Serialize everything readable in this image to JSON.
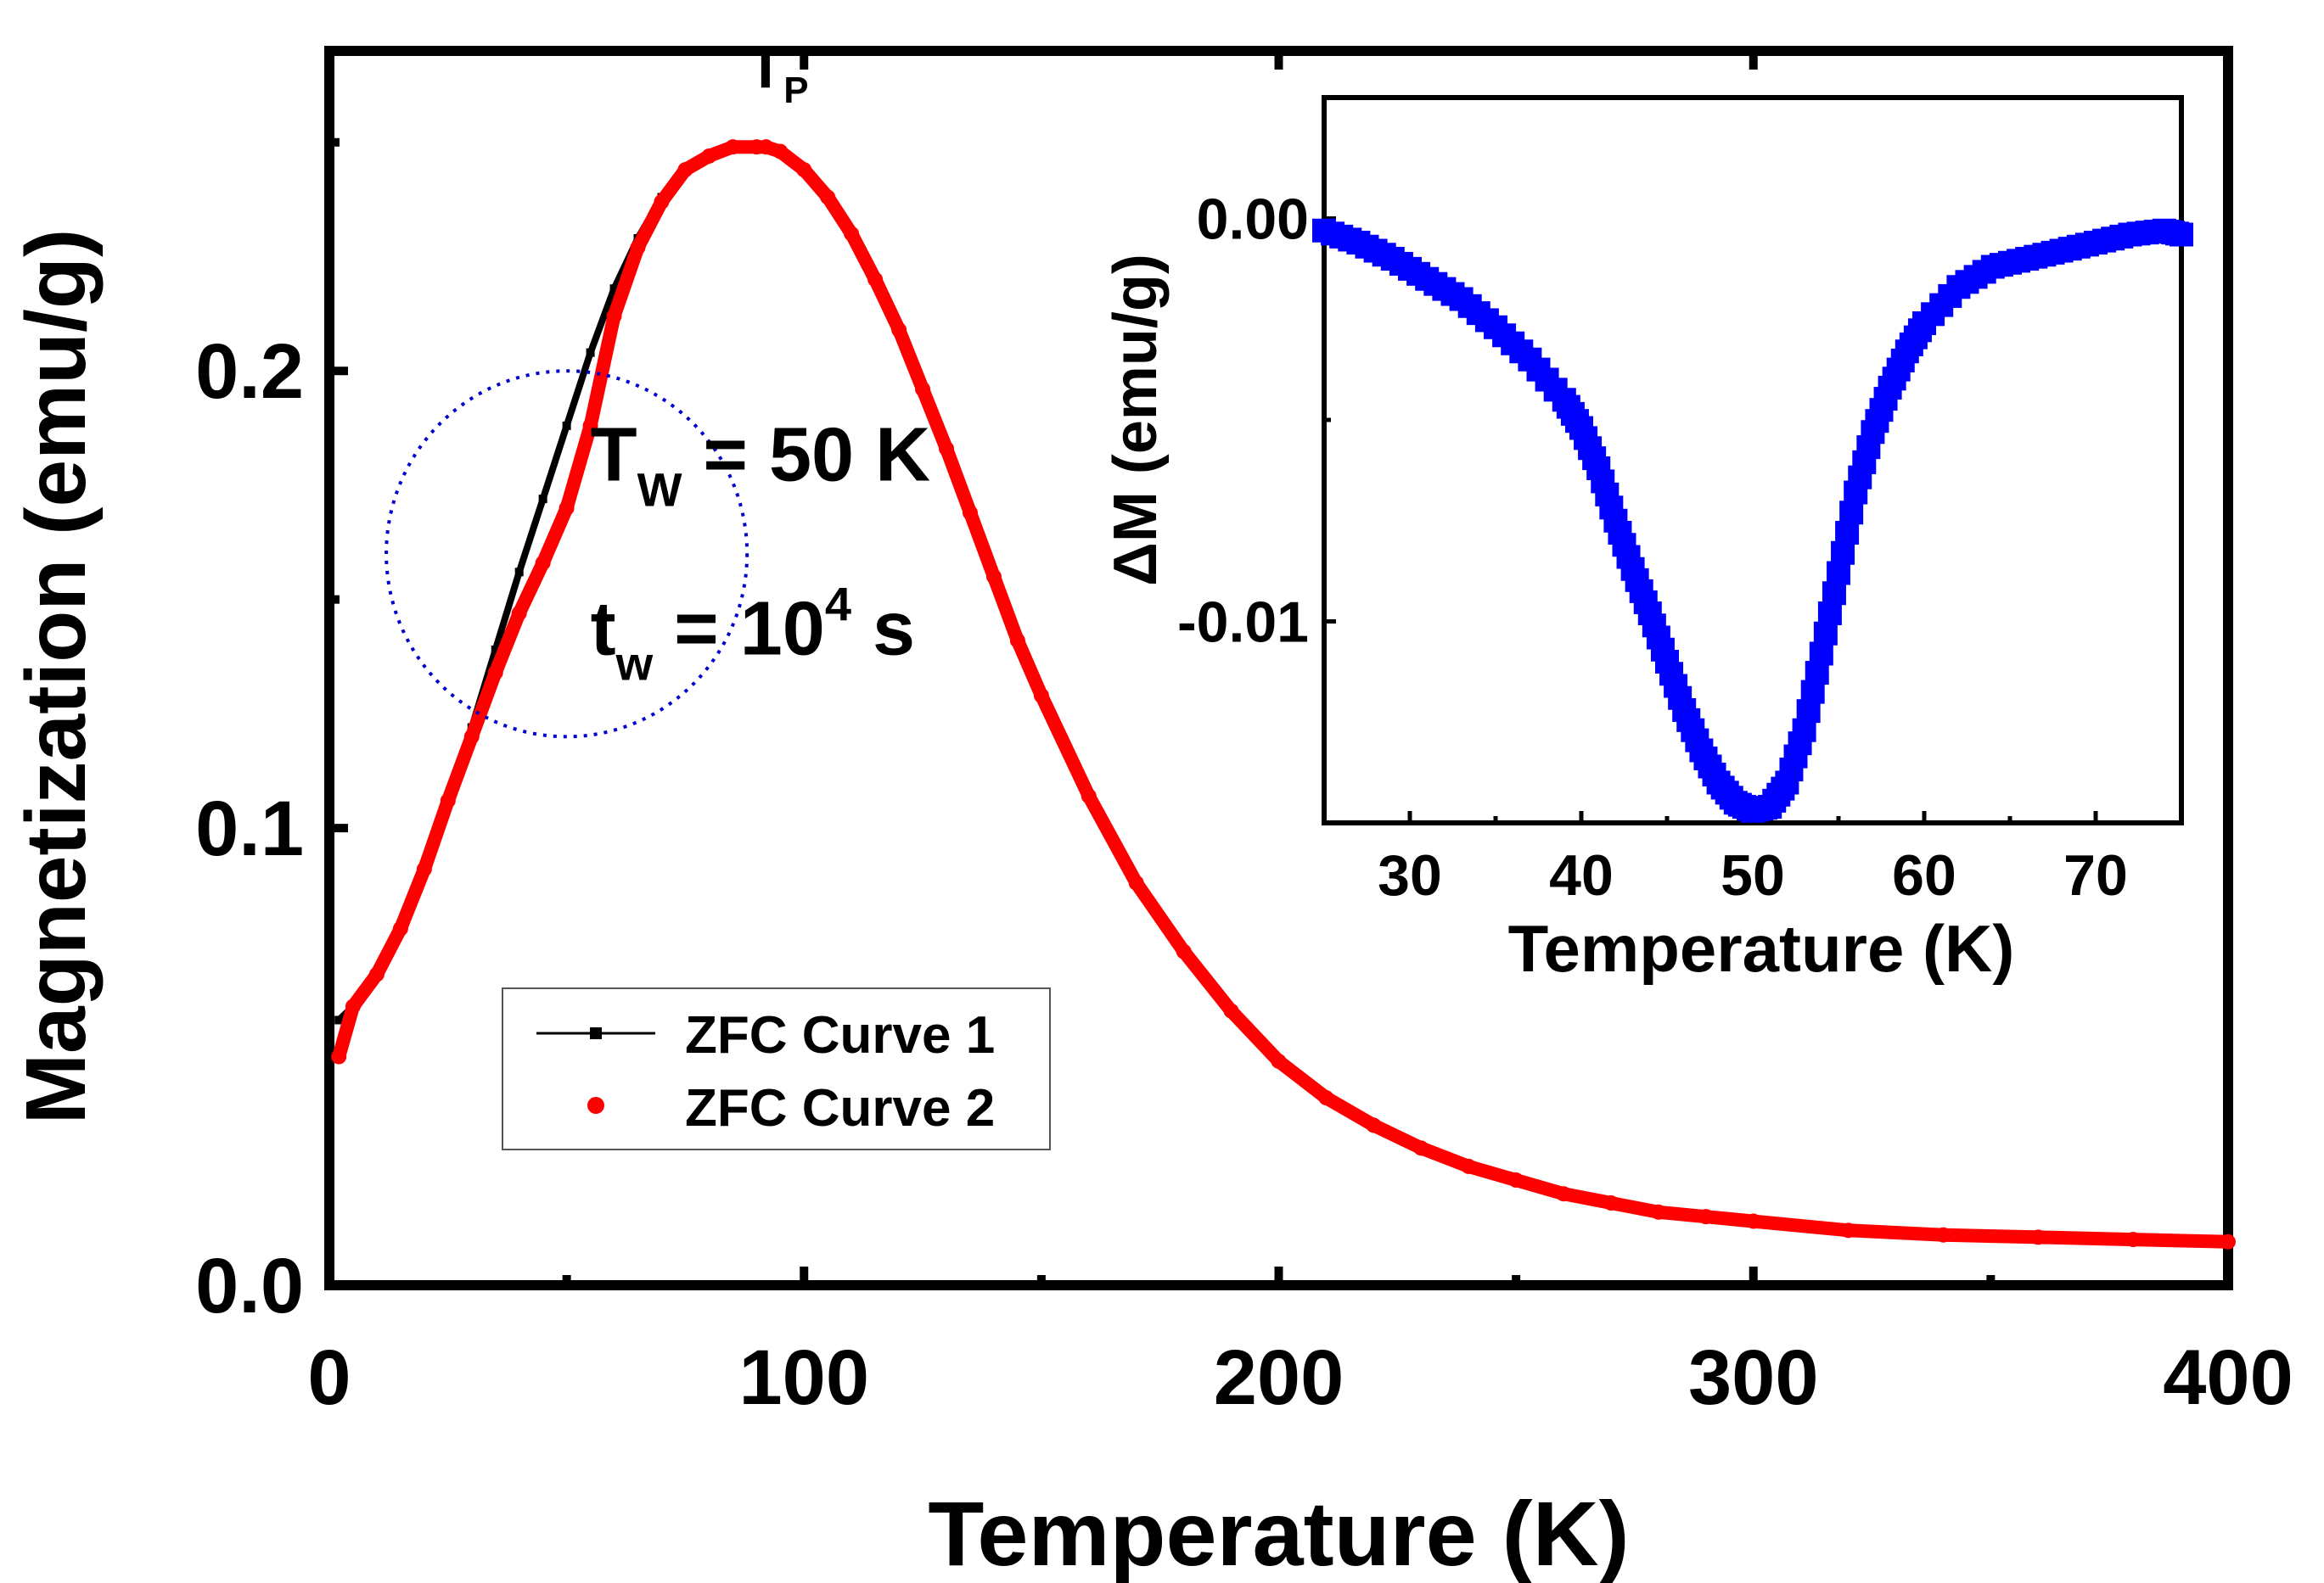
{
  "chart_data": [
    {
      "type": "line",
      "xlabel": "Temperature (K)",
      "ylabel": "Magnetization (emu/g)",
      "xlim": [
        0,
        400
      ],
      "ylim": [
        0,
        0.27
      ],
      "xticks": [
        0,
        100,
        200,
        300,
        400
      ],
      "xtick_labels": [
        "0",
        "100",
        "200",
        "300",
        "400"
      ],
      "yticks": [
        0,
        0.1,
        0.2
      ],
      "ytick_labels": [
        "0.0",
        "0.1",
        "0.2"
      ],
      "grid": false,
      "legend_position": "bottom-center-left",
      "annotations": {
        "peak": {
          "main": "T",
          "sub": "P",
          "x": 92,
          "y": 0.262
        },
        "tw": {
          "main": "T",
          "sub": "W",
          "rest": " = 50 K",
          "x": 55,
          "y": 0.176
        },
        "tw_time": {
          "main": "t",
          "sub": "w",
          "mid": " = 10",
          "sup": "4",
          "rest": " s",
          "x": 55,
          "y": 0.138
        },
        "circle": {
          "cx": 50,
          "cy": 0.16,
          "rx": 38,
          "ry": 0.04
        }
      },
      "series": [
        {
          "name": "ZFC Curve 1",
          "color": "#000000",
          "marker": "square",
          "x": [
            2,
            5,
            10,
            15,
            20,
            25,
            30,
            35,
            40,
            45,
            50,
            55,
            60,
            65,
            70,
            75,
            80,
            85,
            90,
            92,
            95,
            100,
            105,
            110,
            115,
            120,
            125,
            130,
            135,
            140,
            145,
            150,
            160,
            170,
            180,
            190,
            200,
            210,
            220,
            230,
            240,
            250,
            260,
            270,
            280,
            290,
            300,
            320,
            340,
            360,
            380,
            400
          ],
          "y": [
            0.058,
            0.061,
            0.068,
            0.078,
            0.091,
            0.106,
            0.122,
            0.139,
            0.156,
            0.172,
            0.188,
            0.204,
            0.218,
            0.229,
            0.238,
            0.244,
            0.247,
            0.249,
            0.249,
            0.249,
            0.248,
            0.244,
            0.238,
            0.23,
            0.22,
            0.209,
            0.196,
            0.183,
            0.169,
            0.155,
            0.141,
            0.129,
            0.107,
            0.088,
            0.073,
            0.06,
            0.049,
            0.041,
            0.035,
            0.03,
            0.026,
            0.023,
            0.02,
            0.018,
            0.016,
            0.015,
            0.014,
            0.012,
            0.011,
            0.0105,
            0.01,
            0.0095
          ]
        },
        {
          "name": "ZFC Curve 2",
          "color": "#ff0000",
          "marker": "circle",
          "x": [
            2,
            5,
            10,
            15,
            20,
            25,
            30,
            35,
            40,
            45,
            50,
            55,
            60,
            65,
            70,
            75,
            80,
            85,
            90,
            92,
            95,
            100,
            105,
            110,
            115,
            120,
            125,
            130,
            135,
            140,
            145,
            150,
            160,
            170,
            180,
            190,
            200,
            210,
            220,
            230,
            240,
            250,
            260,
            270,
            280,
            290,
            300,
            320,
            340,
            360,
            380,
            400
          ],
          "y": [
            0.05,
            0.061,
            0.068,
            0.078,
            0.091,
            0.106,
            0.12,
            0.134,
            0.147,
            0.158,
            0.17,
            0.188,
            0.212,
            0.227,
            0.237,
            0.244,
            0.247,
            0.249,
            0.249,
            0.249,
            0.248,
            0.244,
            0.238,
            0.23,
            0.22,
            0.209,
            0.196,
            0.183,
            0.169,
            0.155,
            0.141,
            0.129,
            0.107,
            0.088,
            0.073,
            0.06,
            0.049,
            0.041,
            0.035,
            0.03,
            0.026,
            0.023,
            0.02,
            0.018,
            0.016,
            0.015,
            0.014,
            0.012,
            0.011,
            0.0105,
            0.01,
            0.0095
          ]
        }
      ]
    },
    {
      "type": "scatter",
      "inset": true,
      "xlabel": "Temperature (K)",
      "ylabel": "ΔM (emu/g)",
      "xlim": [
        25,
        75
      ],
      "ylim": [
        -0.015,
        0.003
      ],
      "xticks": [
        30,
        40,
        50,
        60,
        70
      ],
      "xtick_labels": [
        "30",
        "40",
        "50",
        "60",
        "70"
      ],
      "yticks": [
        0,
        -0.01
      ],
      "ytick_labels": [
        "0.00",
        "-0.01"
      ],
      "grid": false,
      "series": [
        {
          "color": "#0000ff",
          "marker": "square",
          "x": [
            25,
            27,
            29,
            31,
            33,
            35,
            37,
            39,
            40,
            41,
            42,
            43,
            44,
            45,
            46,
            47,
            48,
            49,
            50,
            51,
            52,
            53,
            54,
            55,
            56,
            57,
            58,
            59,
            60,
            62,
            64,
            66,
            68,
            70,
            72,
            74,
            75
          ],
          "y": [
            -0.0003,
            -0.0006,
            -0.001,
            -0.0015,
            -0.002,
            -0.0027,
            -0.0035,
            -0.0045,
            -0.0052,
            -0.0062,
            -0.0075,
            -0.0087,
            -0.0098,
            -0.011,
            -0.0122,
            -0.0132,
            -0.014,
            -0.0145,
            -0.0147,
            -0.0146,
            -0.014,
            -0.0127,
            -0.0108,
            -0.0088,
            -0.0068,
            -0.0053,
            -0.0042,
            -0.0033,
            -0.0026,
            -0.0017,
            -0.0012,
            -0.001,
            -0.0008,
            -0.0006,
            -0.0004,
            -0.0003,
            -0.0004
          ]
        }
      ]
    }
  ]
}
